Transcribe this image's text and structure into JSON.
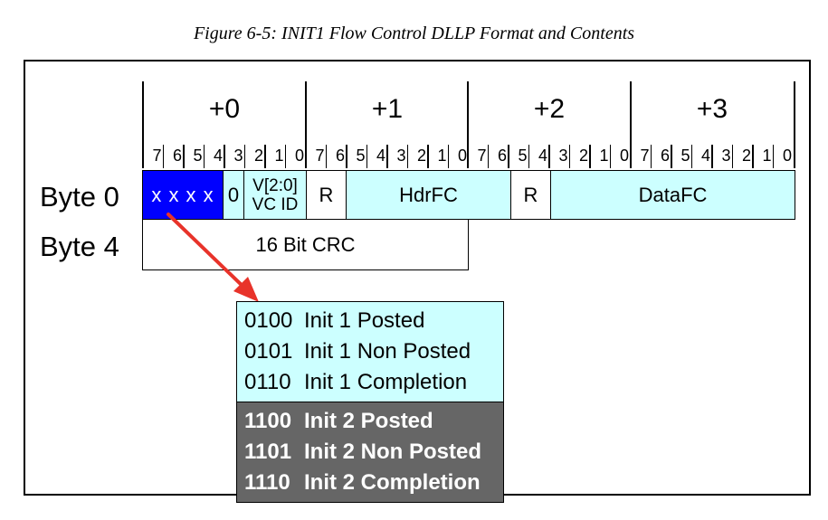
{
  "caption": "Figure 6-5: INIT1 Flow Control DLLP Format and Contents",
  "byte_offsets": [
    "+0",
    "+1",
    "+2",
    "+3"
  ],
  "bit_numbers": [
    "7",
    "6",
    "5",
    "4",
    "3",
    "2",
    "1",
    "0"
  ],
  "rows": {
    "byte0_label": "Byte 0",
    "byte4_label": "Byte 4"
  },
  "fields": {
    "type_bits": "x x x x",
    "zero_bit": "0",
    "vc_id_line1": "V[2:0]",
    "vc_id_line2": "VC ID",
    "reserved1": "R",
    "hdrfc": "HdrFC",
    "reserved2": "R",
    "datafc": "DataFC",
    "crc": "16 Bit CRC"
  },
  "type_table": {
    "init1": [
      {
        "code": "0100",
        "label": "Init 1 Posted"
      },
      {
        "code": "0101",
        "label": "Init 1 Non Posted"
      },
      {
        "code": "0110",
        "label": "Init 1 Completion"
      }
    ],
    "init2": [
      {
        "code": "1100",
        "label": "Init 2 Posted"
      },
      {
        "code": "1101",
        "label": "Init 2 Non Posted"
      },
      {
        "code": "1110",
        "label": "Init 2 Completion"
      }
    ]
  },
  "colors": {
    "field_cyan": "#ccffff",
    "type_blue": "#0000ff",
    "init2_grey": "#666666",
    "arrow_red": "#e8332a"
  }
}
